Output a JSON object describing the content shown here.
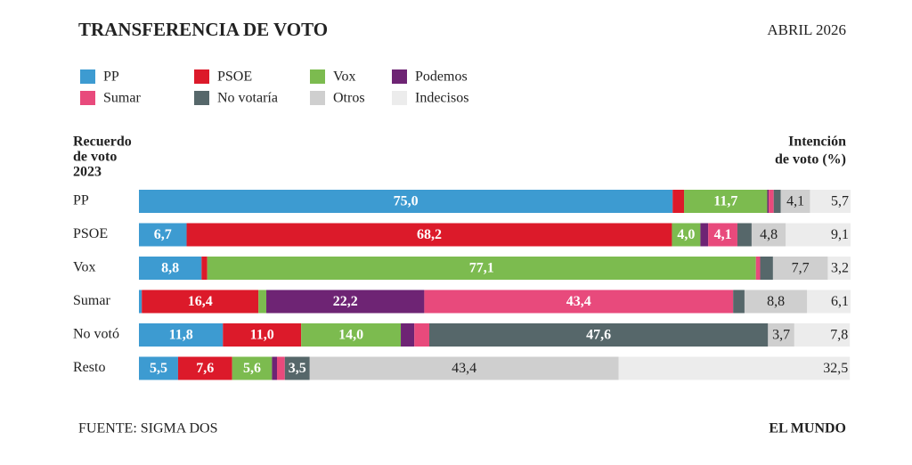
{
  "chart_data": {
    "type": "bar",
    "orientation": "horizontal",
    "stacked": true,
    "title": "TRANSFERENCIA DE VOTO",
    "date": "ABRIL 2026",
    "y_label": [
      "Recuerdo",
      "de voto",
      "2023"
    ],
    "y2_label": [
      "Intención",
      "de voto (%)"
    ],
    "source": "FUENTE: SIGMA DOS",
    "brand": "EL MUNDO",
    "xlim": [
      0,
      100
    ],
    "categories": [
      "PP",
      "PSOE",
      "Vox",
      "Sumar",
      "No votó",
      "Resto"
    ],
    "series": [
      {
        "name": "PP",
        "color": "#3d9bd1",
        "values": [
          75.0,
          6.7,
          8.8,
          0.4,
          11.8,
          5.5
        ],
        "value_labels": [
          "75,0",
          "6,7",
          "8,8",
          null,
          "11,8",
          "5,5"
        ]
      },
      {
        "name": "PSOE",
        "color": "#dc1a2a",
        "values": [
          1.6,
          68.2,
          0.8,
          16.4,
          11.0,
          7.6
        ],
        "value_labels": [
          null,
          "68,2",
          null,
          "16,4",
          "11,0",
          "7,6"
        ]
      },
      {
        "name": "Vox",
        "color": "#7cbb4f",
        "values": [
          11.7,
          4.0,
          77.1,
          1.1,
          14.0,
          5.6
        ],
        "value_labels": [
          "11,7",
          "4,0",
          "77,1",
          null,
          "14,0",
          "5,6"
        ]
      },
      {
        "name": "Podemos",
        "color": "#6e2474",
        "values": [
          0.2,
          1.1,
          0,
          22.2,
          1.9,
          0.7
        ],
        "value_labels": [
          null,
          null,
          null,
          "22,2",
          null,
          null
        ]
      },
      {
        "name": "Sumar",
        "color": "#e84a7c",
        "values": [
          0.7,
          4.1,
          0.6,
          43.4,
          2.1,
          1.1
        ],
        "value_labels": [
          null,
          "4,1",
          null,
          "43,4",
          null,
          null
        ]
      },
      {
        "name": "No votaría",
        "color": "#56676a",
        "values": [
          1.0,
          2.0,
          1.8,
          1.6,
          47.6,
          3.5
        ],
        "value_labels": [
          null,
          null,
          null,
          null,
          "47,6",
          "3,5"
        ]
      },
      {
        "name": "Otros",
        "color": "#cfcfcf",
        "values": [
          4.1,
          4.8,
          7.7,
          8.8,
          3.7,
          43.4
        ],
        "value_labels": [
          "4,1",
          "4,8",
          "7,7",
          "8,8",
          "3,7",
          "43,4"
        ]
      },
      {
        "name": "Indecisos",
        "color": "#ececec",
        "values": [
          5.7,
          9.1,
          3.2,
          6.1,
          7.8,
          32.5
        ],
        "value_labels": [
          "5,7",
          "9,1",
          "3,2",
          "6,1",
          "7,8",
          "32,5"
        ]
      }
    ]
  }
}
